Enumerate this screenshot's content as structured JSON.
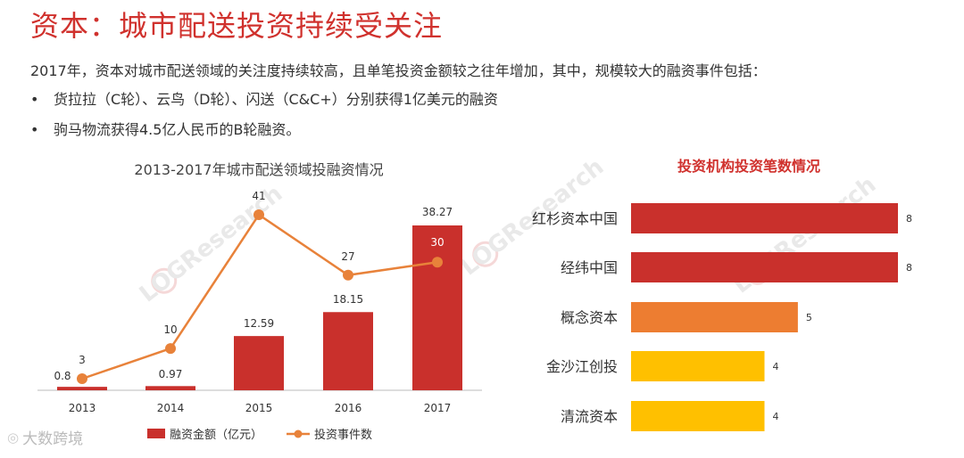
{
  "page": {
    "title": "资本：城市配送投资持续受关注",
    "intro": "2017年，资本对城市配送领域的关注度持续较高，且单笔投资金额较之往年增加，其中，规模较大的融资事件包括：",
    "bullets": [
      "货拉拉（C轮）、云鸟（D轮）、闪送（C&C+）分别获得1亿美元的融资",
      "驹马物流获得4.5亿人民币的B轮融资。"
    ],
    "bullet_symbol": "•",
    "watermark": "LOGResearch",
    "footer_brand": "大数跨境"
  },
  "colors": {
    "title": "#d0312d",
    "bar_red": "#c9302c",
    "line_orange": "#e8823a",
    "bar_orange": "#ed7d31",
    "bar_yellow": "#ffc000"
  },
  "chart_data": [
    {
      "type": "bar+line",
      "title": "2013-2017年城市配送领域投融资情况",
      "categories": [
        "2013",
        "2014",
        "2015",
        "2016",
        "2017"
      ],
      "series": [
        {
          "name": "融资金额（亿元）",
          "type": "bar",
          "values": [
            0.8,
            0.97,
            12.59,
            18.15,
            38.27
          ]
        },
        {
          "name": "投资事件数",
          "type": "line",
          "values": [
            3,
            10,
            41,
            27,
            30
          ]
        }
      ],
      "legend": "bottom",
      "grid": false
    },
    {
      "type": "bar",
      "orientation": "horizontal",
      "title": "投资机构投资笔数情况",
      "categories": [
        "红杉资本中国",
        "经纬中国",
        "概念资本",
        "金沙江创投",
        "清流资本"
      ],
      "values": [
        8,
        8,
        5,
        4,
        4
      ],
      "bar_colors": [
        "#c9302c",
        "#c9302c",
        "#ed7d31",
        "#ffc000",
        "#ffc000"
      ],
      "grid": false
    }
  ]
}
